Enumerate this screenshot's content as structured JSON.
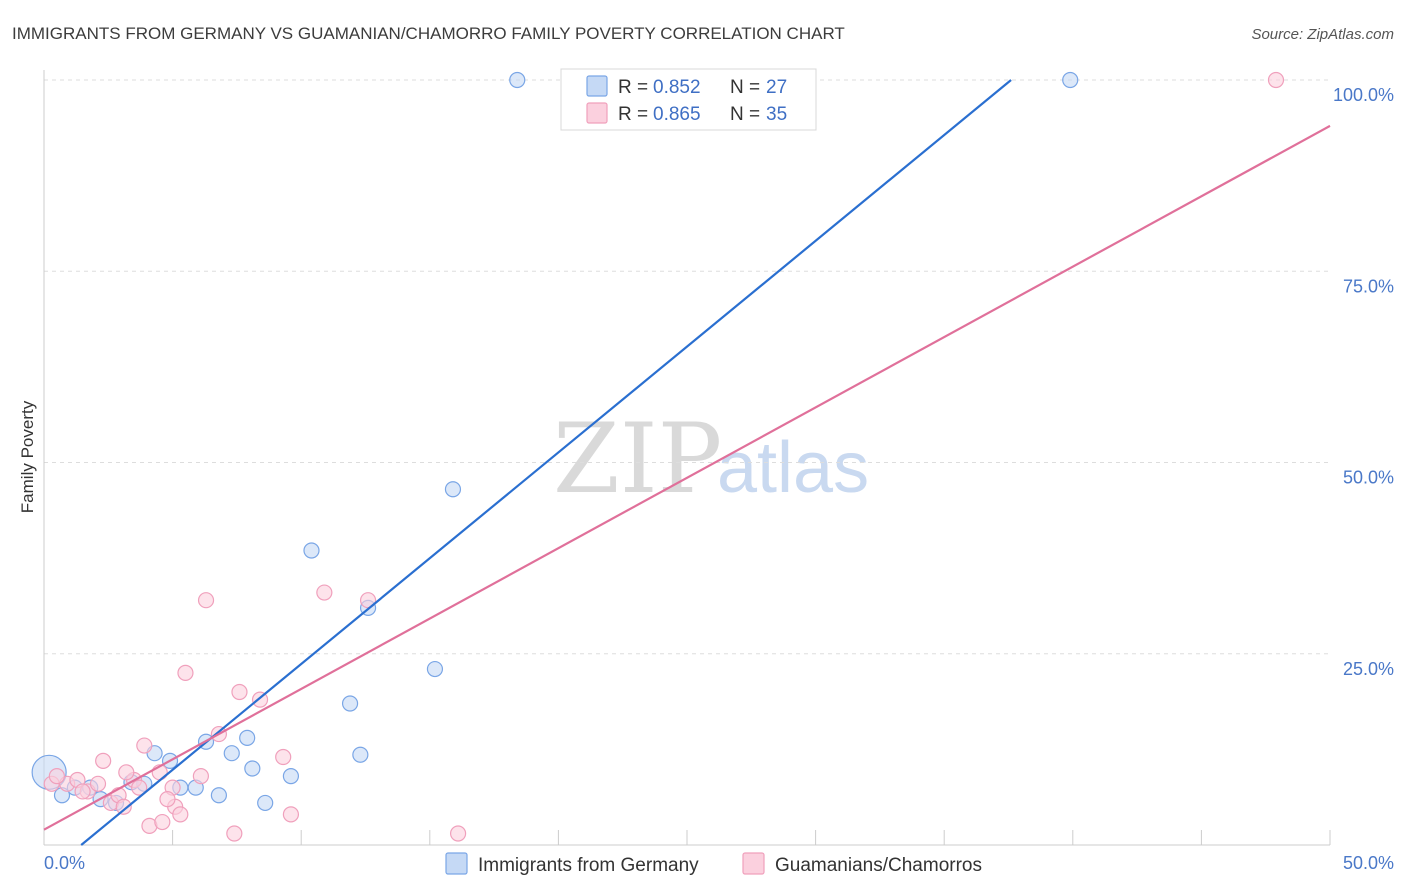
{
  "chart_data": {
    "type": "scatter",
    "title": "IMMIGRANTS FROM GERMANY VS GUAMANIAN/CHAMORRO FAMILY POVERTY CORRELATION CHART",
    "source": "Source: ZipAtlas.com",
    "xlabel": "",
    "ylabel": "Family Poverty",
    "xlim": [
      0,
      50
    ],
    "ylim": [
      0,
      100
    ],
    "x_tick_labels": [
      "0.0%",
      "50.0%"
    ],
    "y_ticks": [
      25,
      50,
      75,
      100
    ],
    "y_tick_labels": [
      "25.0%",
      "50.0%",
      "75.0%",
      "100.0%"
    ],
    "grid": true,
    "legend_position": "top-center",
    "watermark": {
      "zip": "ZIP",
      "atlas": "atlas"
    },
    "series": [
      {
        "name": "Immigrants from Germany",
        "color": "#7aa6e6",
        "fill": "#c5d9f5",
        "line_color": "#2a6fd0",
        "r_label": "R =",
        "r_value": "0.852",
        "n_label": "N =",
        "n_value": "27",
        "trend": {
          "x0": 0,
          "y0": -4,
          "x1": 37.6,
          "y1": 100
        },
        "points": [
          [
            0.2,
            9.5
          ],
          [
            0.7,
            6.5
          ],
          [
            1.2,
            7.5
          ],
          [
            1.8,
            7.5
          ],
          [
            2.2,
            6.0
          ],
          [
            2.8,
            5.5
          ],
          [
            3.4,
            8.2
          ],
          [
            3.9,
            8.0
          ],
          [
            4.3,
            12.0
          ],
          [
            4.9,
            11.0
          ],
          [
            5.3,
            7.5
          ],
          [
            5.9,
            7.5
          ],
          [
            6.3,
            13.5
          ],
          [
            6.8,
            6.5
          ],
          [
            7.3,
            12.0
          ],
          [
            7.9,
            14.0
          ],
          [
            8.1,
            10.0
          ],
          [
            8.6,
            5.5
          ],
          [
            9.6,
            9.0
          ],
          [
            10.4,
            38.5
          ],
          [
            11.9,
            18.5
          ],
          [
            12.3,
            11.8
          ],
          [
            12.6,
            31.0
          ],
          [
            15.2,
            23.0
          ],
          [
            15.9,
            46.5
          ],
          [
            18.4,
            100
          ],
          [
            39.9,
            100
          ]
        ]
      },
      {
        "name": "Guamanians/Chamorros",
        "color": "#f0a0bc",
        "fill": "#fbd0de",
        "line_color": "#e0709a",
        "r_label": "R =",
        "r_value": "0.865",
        "n_label": "N =",
        "n_value": "35",
        "trend": {
          "x0": 0,
          "y0": 2,
          "x1": 50,
          "y1": 94
        },
        "points": [
          [
            0.3,
            8.0
          ],
          [
            0.9,
            8.0
          ],
          [
            1.3,
            8.5
          ],
          [
            1.7,
            7.0
          ],
          [
            2.1,
            8.0
          ],
          [
            2.3,
            11.0
          ],
          [
            2.6,
            5.5
          ],
          [
            2.9,
            6.5
          ],
          [
            3.1,
            5.0
          ],
          [
            3.5,
            8.5
          ],
          [
            3.7,
            7.5
          ],
          [
            3.9,
            13.0
          ],
          [
            4.1,
            2.5
          ],
          [
            4.5,
            9.5
          ],
          [
            4.6,
            3.0
          ],
          [
            5.0,
            7.5
          ],
          [
            5.1,
            5.0
          ],
          [
            5.3,
            4.0
          ],
          [
            5.5,
            22.5
          ],
          [
            6.1,
            9.0
          ],
          [
            6.3,
            32.0
          ],
          [
            6.8,
            14.5
          ],
          [
            7.4,
            1.5
          ],
          [
            7.6,
            20.0
          ],
          [
            8.4,
            19.0
          ],
          [
            9.3,
            11.5
          ],
          [
            9.6,
            4.0
          ],
          [
            10.9,
            33.0
          ],
          [
            12.6,
            32.0
          ],
          [
            16.1,
            1.5
          ],
          [
            47.9,
            100
          ],
          [
            0.5,
            9.0
          ],
          [
            1.5,
            7.0
          ],
          [
            3.2,
            9.5
          ],
          [
            4.8,
            6.0
          ]
        ]
      }
    ]
  }
}
